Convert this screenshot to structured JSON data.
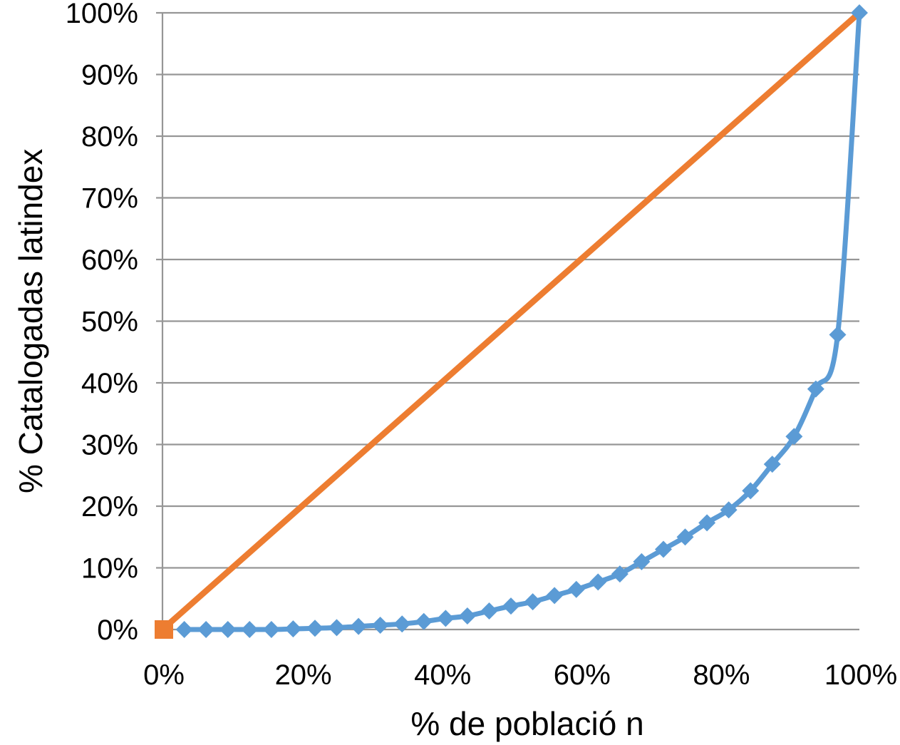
{
  "chart_data": {
    "type": "line",
    "title": "",
    "xlabel": "% de població n",
    "ylabel": "% Catalogadas latindex",
    "xlim": [
      0,
      100
    ],
    "ylim": [
      0,
      100
    ],
    "grid": "horizontal-only",
    "legend": "none",
    "x_ticks": [
      {
        "value": 0,
        "label": "0%"
      },
      {
        "value": 20,
        "label": "20%"
      },
      {
        "value": 40,
        "label": "40%"
      },
      {
        "value": 60,
        "label": "60%"
      },
      {
        "value": 80,
        "label": "80%"
      },
      {
        "value": 100,
        "label": "100%"
      }
    ],
    "y_ticks": [
      {
        "value": 0,
        "label": "0%"
      },
      {
        "value": 10,
        "label": "10%"
      },
      {
        "value": 20,
        "label": "20%"
      },
      {
        "value": 30,
        "label": "30%"
      },
      {
        "value": 40,
        "label": "40%"
      },
      {
        "value": 50,
        "label": "50%"
      },
      {
        "value": 60,
        "label": "60%"
      },
      {
        "value": 70,
        "label": "70%"
      },
      {
        "value": 80,
        "label": "80%"
      },
      {
        "value": 90,
        "label": "90%"
      },
      {
        "value": 100,
        "label": "100%"
      }
    ],
    "series": [
      {
        "name": "line-of-equality",
        "color": "#ED7D31",
        "line_width": 8.5,
        "smooth": false,
        "marker": "square",
        "marker_size": 26,
        "markers_at_indices": [
          0
        ],
        "x": [
          0,
          100
        ],
        "y": [
          0,
          100
        ]
      },
      {
        "name": "lorenz-curve",
        "color": "#5B9BD5",
        "line_width": 7,
        "smooth": true,
        "marker": "diamond",
        "marker_size": 24,
        "markers_at_indices": "all",
        "x": [
          3.13,
          6.25,
          9.38,
          12.5,
          15.63,
          18.75,
          21.88,
          25,
          28.13,
          31.25,
          34.38,
          37.5,
          40.63,
          43.75,
          46.88,
          50,
          53.13,
          56.25,
          59.38,
          62.5,
          65.63,
          68.75,
          71.88,
          75,
          78.13,
          81.25,
          84.38,
          87.5,
          90.63,
          93.75,
          96.88,
          100
        ],
        "y": [
          0,
          0,
          0,
          0,
          0,
          0.1,
          0.2,
          0.3,
          0.5,
          0.7,
          0.9,
          1.3,
          1.8,
          2.2,
          3,
          3.8,
          4.5,
          5.5,
          6.5,
          7.7,
          9,
          11,
          13,
          15,
          17.3,
          19.4,
          22.5,
          26.8,
          31.3,
          39,
          47.8,
          100
        ]
      }
    ],
    "colors": {
      "gridline": "#969696",
      "axis_line": "#969696",
      "text": "#000000",
      "background": "#FFFFFF"
    }
  }
}
